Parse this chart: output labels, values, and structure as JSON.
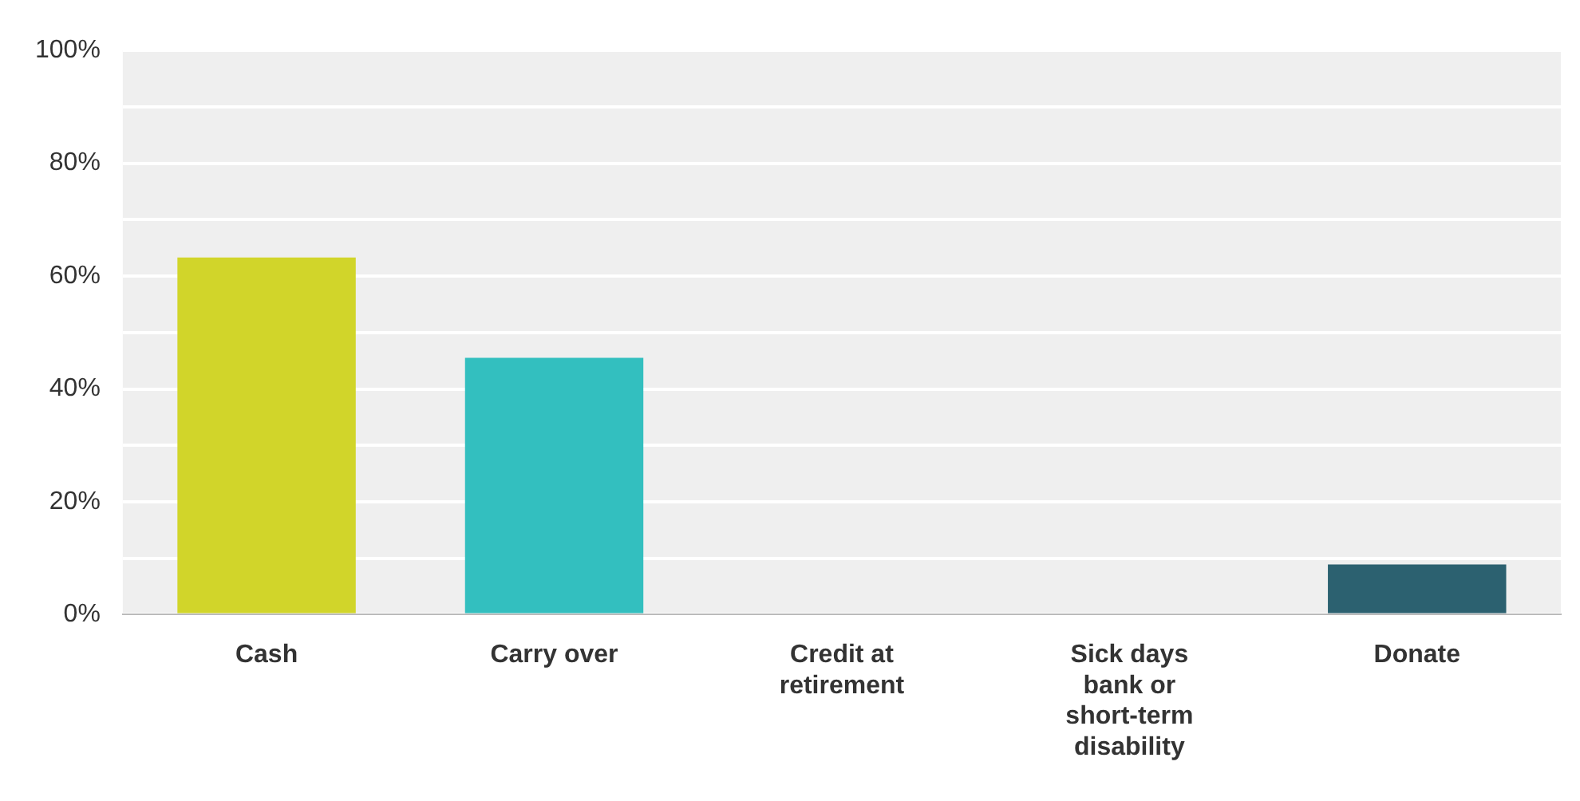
{
  "chart_data": {
    "type": "bar",
    "categories": [
      "Cash",
      "Carry over",
      "Credit at retirement",
      "Sick days bank or short-term disability",
      "Donate"
    ],
    "values": [
      63.3,
      45.5,
      0,
      0,
      8.9
    ],
    "colors": [
      "#d1d52a",
      "#33bfbf",
      "#2f8f9d",
      "#3a7f8f",
      "#2c6170"
    ],
    "ylim": [
      0,
      100
    ],
    "yticks": [
      {
        "value": 0,
        "label": "0%"
      },
      {
        "value": 10,
        "label": null
      },
      {
        "value": 20,
        "label": "20%"
      },
      {
        "value": 30,
        "label": null
      },
      {
        "value": 40,
        "label": "40%"
      },
      {
        "value": 50,
        "label": null
      },
      {
        "value": 60,
        "label": "60%"
      },
      {
        "value": 70,
        "label": null
      },
      {
        "value": 80,
        "label": "80%"
      },
      {
        "value": 90,
        "label": null
      },
      {
        "value": 100,
        "label": "100%"
      }
    ],
    "grid": "y",
    "legend": false
  }
}
